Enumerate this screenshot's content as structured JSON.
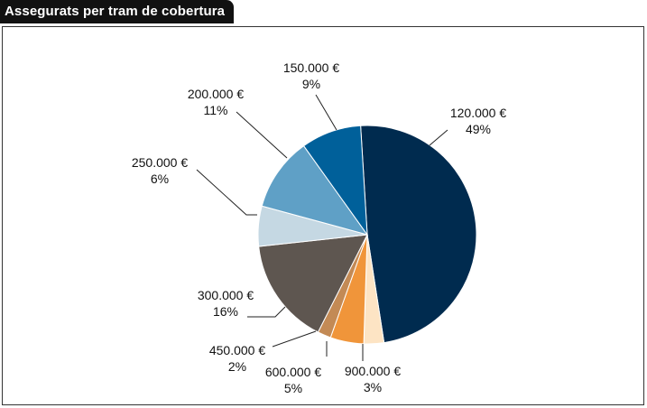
{
  "title": "Assegurats per tram de cobertura",
  "chart_data": {
    "type": "pie",
    "title": "Assegurats per tram de cobertura",
    "start_angle_deg": -3.5,
    "direction": "clockwise",
    "slices": [
      {
        "label": "120.000 €",
        "pct_label": "49%",
        "value": 49,
        "color": "#002b4f"
      },
      {
        "label": "900.000 €",
        "pct_label": "3%",
        "value": 3,
        "color": "#fde4c4"
      },
      {
        "label": "600.000 €",
        "pct_label": "5%",
        "value": 5,
        "color": "#f0953a"
      },
      {
        "label": "450.000 €",
        "pct_label": "2%",
        "value": 2,
        "color": "#c38a55"
      },
      {
        "label": "300.000 €",
        "pct_label": "16%",
        "value": 16,
        "color": "#5e5650"
      },
      {
        "label": "250.000 €",
        "pct_label": "6%",
        "value": 6,
        "color": "#c5d8e3"
      },
      {
        "label": "200.000 €",
        "pct_label": "11%",
        "value": 11,
        "color": "#5fa0c6"
      },
      {
        "label": "150.000 €",
        "pct_label": "9%",
        "value": 9,
        "color": "#00609a"
      }
    ]
  }
}
